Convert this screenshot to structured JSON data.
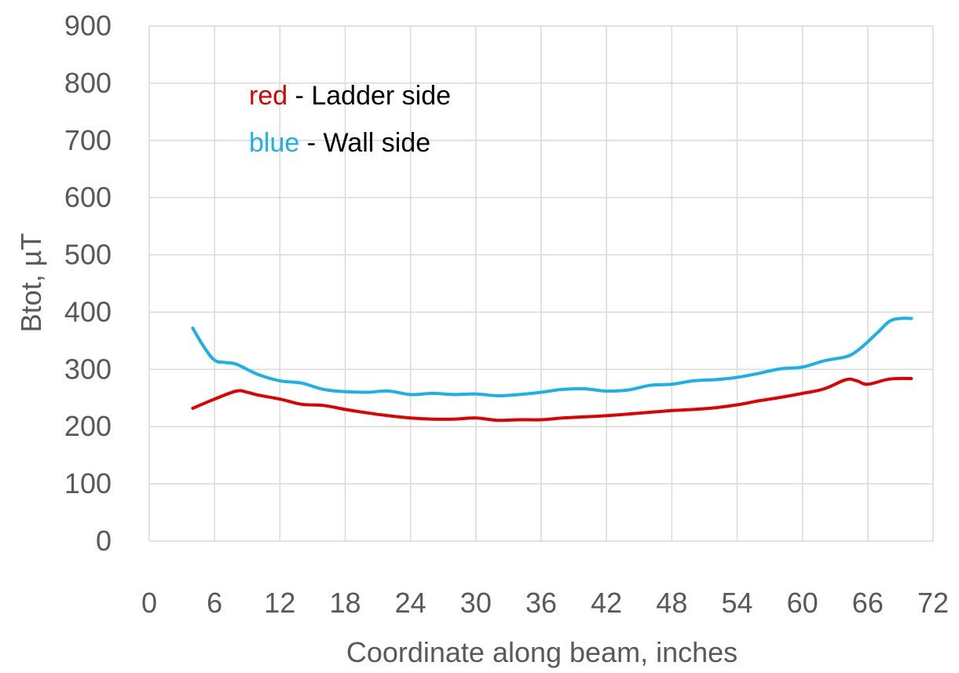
{
  "chart_data": {
    "type": "line",
    "xlabel": "Coordinate along beam, inches",
    "ylabel": "Btot, µT",
    "xlim": [
      0,
      72
    ],
    "ylim": [
      0,
      900
    ],
    "xticks": [
      0,
      6,
      12,
      18,
      24,
      30,
      36,
      42,
      48,
      54,
      60,
      66,
      72
    ],
    "yticks": [
      0,
      100,
      200,
      300,
      400,
      500,
      600,
      700,
      800,
      900
    ],
    "grid": true,
    "legend_position": "top-left",
    "legend": [
      {
        "key": "red",
        "color": "#e00000",
        "text": " - Ladder side"
      },
      {
        "key": "blue",
        "color": "#1ab0e8",
        "text": " - Wall side"
      }
    ],
    "series": [
      {
        "color": "#e00000",
        "x": [
          4,
          6,
          8,
          9,
          10,
          12,
          14,
          16,
          18,
          20,
          22,
          24,
          26,
          28,
          30,
          32,
          34,
          36,
          38,
          40,
          42,
          44,
          46,
          48,
          50,
          52,
          54,
          56,
          58,
          60,
          62,
          64,
          65,
          66,
          68,
          70
        ],
        "values": [
          232,
          248,
          262,
          260,
          255,
          248,
          239,
          237,
          230,
          224,
          219,
          215,
          213,
          213,
          215,
          211,
          212,
          212,
          215,
          217,
          219,
          222,
          225,
          228,
          230,
          233,
          238,
          245,
          251,
          258,
          266,
          282,
          280,
          274,
          283,
          284
        ]
      },
      {
        "color": "#1ab0e8",
        "x": [
          4,
          5,
          6,
          7,
          8,
          10,
          12,
          14,
          16,
          18,
          20,
          22,
          24,
          26,
          28,
          30,
          32,
          34,
          36,
          38,
          40,
          42,
          44,
          46,
          48,
          50,
          52,
          54,
          56,
          58,
          60,
          62,
          64,
          65,
          66,
          67,
          68,
          69,
          70
        ],
        "values": [
          372,
          340,
          316,
          312,
          309,
          291,
          280,
          276,
          265,
          261,
          260,
          262,
          256,
          258,
          256,
          257,
          254,
          256,
          260,
          265,
          266,
          262,
          264,
          272,
          274,
          280,
          282,
          286,
          293,
          301,
          304,
          315,
          322,
          332,
          348,
          366,
          384,
          389,
          389
        ]
      }
    ]
  }
}
